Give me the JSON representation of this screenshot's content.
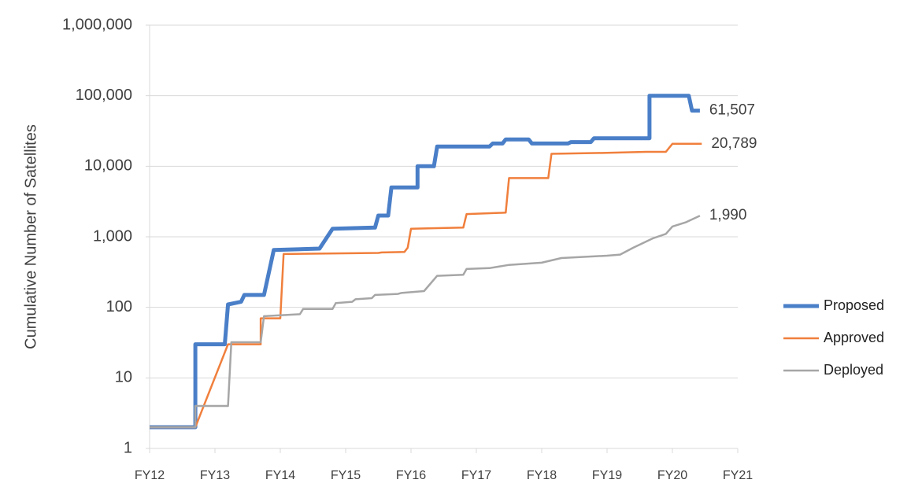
{
  "chart_data": {
    "type": "line",
    "y_label": "Cumulative Number of Satellites",
    "ylog": true,
    "grid": true,
    "legend": "right",
    "xlim": [
      12,
      21
    ],
    "xticks": [
      {
        "value": 12,
        "label": "FY12"
      },
      {
        "value": 13,
        "label": "FY13"
      },
      {
        "value": 14,
        "label": "FY14"
      },
      {
        "value": 15,
        "label": "FY15"
      },
      {
        "value": 16,
        "label": "FY16"
      },
      {
        "value": 17,
        "label": "FY17"
      },
      {
        "value": 18,
        "label": "FY18"
      },
      {
        "value": 19,
        "label": "FY19"
      },
      {
        "value": 20,
        "label": "FY20"
      },
      {
        "value": 21,
        "label": "FY21"
      }
    ],
    "ylim": [
      1,
      1000000
    ],
    "yticks": [
      1,
      10,
      100,
      {
        "value": 1000,
        "label": "1,000"
      },
      {
        "value": 10000,
        "label": "10,000"
      },
      {
        "value": 100000,
        "label": "100,000"
      },
      {
        "value": 1000000,
        "label": "1,000,000"
      }
    ],
    "series": [
      {
        "name": "Proposed",
        "color": "#4a7fc8",
        "width": 5,
        "x": [
          12,
          12.7,
          12.7,
          13.15,
          13.2,
          13.4,
          13.45,
          13.75,
          13.9,
          14.6,
          14.8,
          15.45,
          15.5,
          15.65,
          15.7,
          16.1,
          16.1,
          16.35,
          16.4,
          17.2,
          17.25,
          17.4,
          17.45,
          17.8,
          17.85,
          18.4,
          18.45,
          18.75,
          18.8,
          19.6,
          19.65,
          19.65,
          20.25,
          20.3,
          20.42
        ],
        "values": [
          2,
          2,
          30,
          30,
          110,
          120,
          150,
          150,
          650,
          680,
          1300,
          1350,
          2000,
          2000,
          5000,
          5000,
          10000,
          10000,
          19000,
          19000,
          21000,
          21000,
          24000,
          24000,
          21000,
          21000,
          22000,
          22000,
          25000,
          25000,
          25000,
          100000,
          100000,
          61507,
          61507
        ],
        "value_labels": [
          null,
          null,
          null,
          null,
          null,
          null,
          null,
          null,
          null,
          null,
          null,
          null,
          null,
          null,
          null,
          null,
          null,
          null,
          null,
          null,
          null,
          null,
          null,
          null,
          null,
          null,
          null,
          null,
          null,
          null,
          null,
          null,
          null,
          null,
          "61,507"
        ]
      },
      {
        "name": "Approved",
        "color": "#f07f3c",
        "width": 2.5,
        "x": [
          12,
          12.7,
          13.2,
          13.7,
          13.7,
          14.0,
          14.05,
          15.5,
          15.55,
          15.9,
          15.95,
          16.0,
          16.8,
          16.85,
          17.45,
          17.5,
          18.1,
          18.15,
          19.0,
          19.6,
          19.9,
          20.0,
          20.45
        ],
        "values": [
          2,
          2,
          30,
          30,
          70,
          70,
          570,
          590,
          600,
          610,
          700,
          1300,
          1350,
          2100,
          2200,
          6800,
          6800,
          15000,
          15500,
          16000,
          16000,
          20789,
          20789
        ],
        "value_labels": [
          null,
          null,
          null,
          null,
          null,
          null,
          null,
          null,
          null,
          null,
          null,
          null,
          null,
          null,
          null,
          null,
          null,
          null,
          null,
          null,
          null,
          null,
          "20,789"
        ]
      },
      {
        "name": "Deployed",
        "color": "#a6a6a6",
        "width": 2.5,
        "x": [
          12,
          12.7,
          12.7,
          13.2,
          13.25,
          13.7,
          13.75,
          14.3,
          14.35,
          14.8,
          14.85,
          15.1,
          15.15,
          15.4,
          15.45,
          15.8,
          15.85,
          16.2,
          16.4,
          16.8,
          16.85,
          17.2,
          17.5,
          18.0,
          18.3,
          19.0,
          19.2,
          19.4,
          19.7,
          19.9,
          20.0,
          20.2,
          20.42
        ],
        "values": [
          2,
          2,
          4,
          4,
          32,
          32,
          75,
          80,
          95,
          95,
          115,
          120,
          130,
          135,
          150,
          155,
          160,
          170,
          280,
          290,
          350,
          360,
          400,
          430,
          500,
          540,
          560,
          700,
          950,
          1100,
          1400,
          1600,
          1990
        ],
        "value_labels": [
          null,
          null,
          null,
          null,
          null,
          null,
          null,
          null,
          null,
          null,
          null,
          null,
          null,
          null,
          null,
          null,
          null,
          null,
          null,
          null,
          null,
          null,
          null,
          null,
          null,
          null,
          null,
          null,
          null,
          null,
          null,
          null,
          "1,990"
        ]
      }
    ]
  }
}
